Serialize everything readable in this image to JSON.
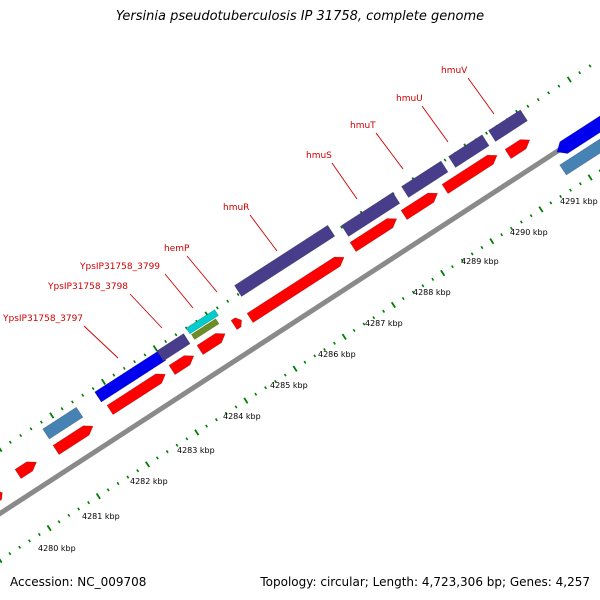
{
  "title": "Yersinia pseudotuberculosis IP 31758, complete genome",
  "footer": {
    "accession": "Accession: NC_009708",
    "summary": "Topology: circular; Length: 4,723,306 bp; Genes: 4,257"
  },
  "colors": {
    "backbone": "#8a8a8a",
    "cds_forward": "#ff0000",
    "feature_blue": "#0000ee",
    "feature_steelblue": "#4682b4",
    "feature_slateblue": "#483d8b",
    "feature_cyan": "#00cccc",
    "feature_olive": "#6b8e23",
    "dots": "#008000",
    "gene_label": "#cc0000"
  },
  "gene_labels": [
    {
      "id": "ypsip31758-3797",
      "text": "YpsIP31758_3797"
    },
    {
      "id": "ypsip31758-3798",
      "text": "YpsIP31758_3798"
    },
    {
      "id": "ypsip31758-3799",
      "text": "YpsIP31758_3799"
    },
    {
      "id": "hemp",
      "text": "hemP"
    },
    {
      "id": "hmur",
      "text": "hmuR"
    },
    {
      "id": "hmus",
      "text": "hmuS"
    },
    {
      "id": "hmut",
      "text": "hmuT"
    },
    {
      "id": "hmuu",
      "text": "hmuU"
    },
    {
      "id": "hmuv",
      "text": "hmuV"
    }
  ],
  "tick_labels": [
    "4280 kbp",
    "4281 kbp",
    "4282 kbp",
    "4283 kbp",
    "4284 kbp",
    "4285 kbp",
    "4286 kbp",
    "4287 kbp",
    "4288 kbp",
    "4289 kbp",
    "4290 kbp",
    "4291 kbp"
  ]
}
